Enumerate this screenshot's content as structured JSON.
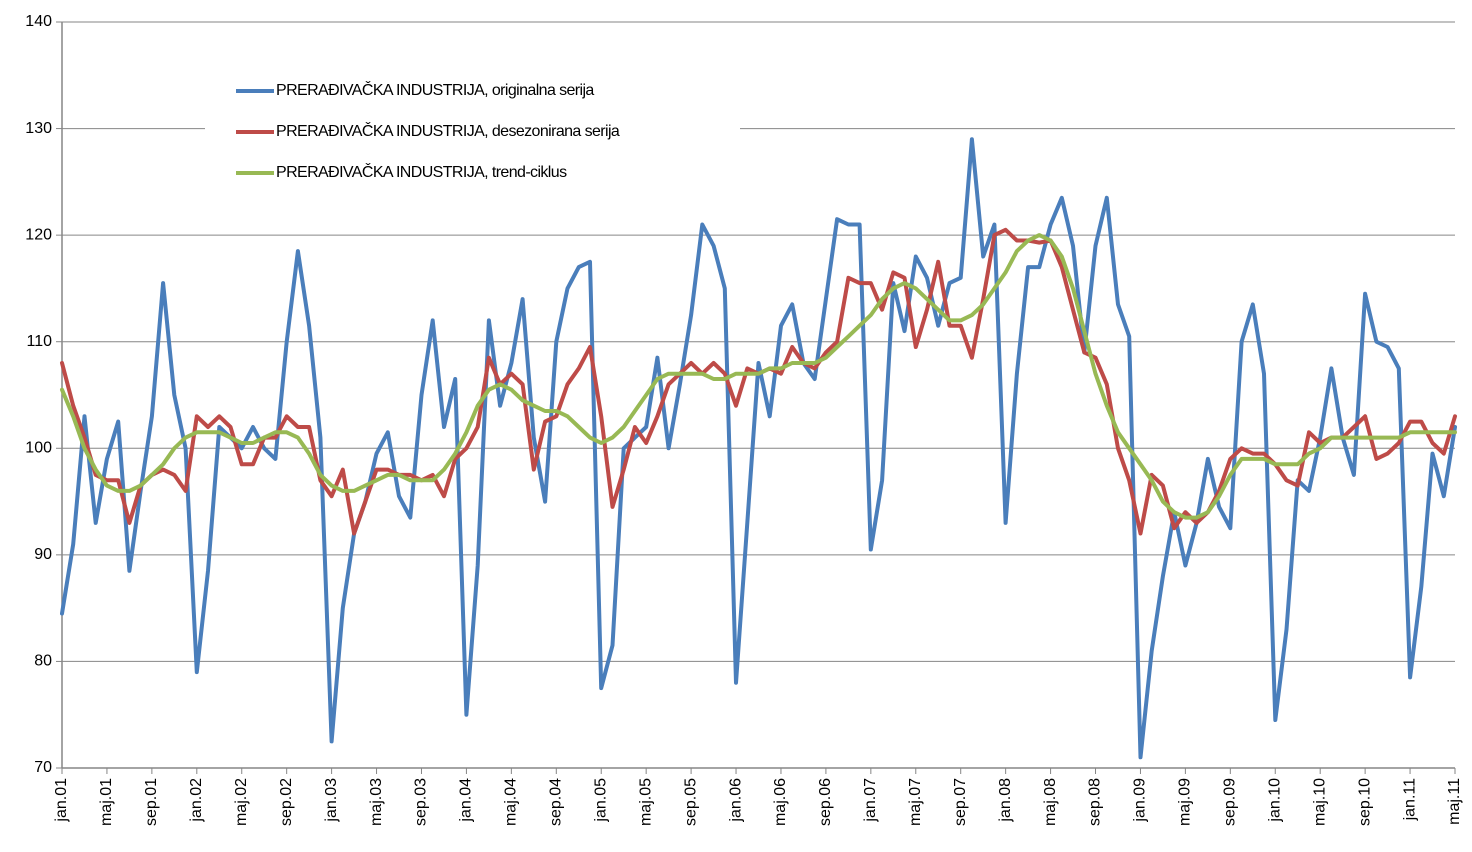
{
  "chart_data": {
    "type": "line",
    "categories": [
      "jan.01",
      null,
      null,
      null,
      "maj.01",
      null,
      null,
      null,
      "sep.01",
      null,
      null,
      null,
      "jan.02",
      null,
      null,
      null,
      "maj.02",
      null,
      null,
      null,
      "sep.02",
      null,
      null,
      null,
      "jan.03",
      null,
      null,
      null,
      "maj.03",
      null,
      null,
      null,
      "sep.03",
      null,
      null,
      null,
      "jan.04",
      null,
      null,
      null,
      "maj.04",
      null,
      null,
      null,
      "sep.04",
      null,
      null,
      null,
      "jan.05",
      null,
      null,
      null,
      "maj.05",
      null,
      null,
      null,
      "sep.05",
      null,
      null,
      null,
      "jan.06",
      null,
      null,
      null,
      "maj.06",
      null,
      null,
      null,
      "sep.06",
      null,
      null,
      null,
      "jan.07",
      null,
      null,
      null,
      "maj.07",
      null,
      null,
      null,
      "sep.07",
      null,
      null,
      null,
      "jan.08",
      null,
      null,
      null,
      "maj.08",
      null,
      null,
      null,
      "sep.08",
      null,
      null,
      null,
      "jan.09",
      null,
      null,
      null,
      "maj.09",
      null,
      null,
      null,
      "sep.09",
      null,
      null,
      null,
      "jan.10",
      null,
      null,
      null,
      "maj.10",
      null,
      null,
      null,
      "sep.10",
      null,
      null,
      null,
      "jan.11",
      null,
      null,
      null,
      "maj.11"
    ],
    "series": [
      {
        "name": "PRERAĐIVAČKA INDUSTRIJA, originalna serija",
        "color": "#4a7ebb",
        "values": [
          84.5,
          91,
          103,
          93,
          99,
          102.5,
          88.5,
          96,
          103,
          115.5,
          105,
          100,
          79,
          88.5,
          102,
          101,
          100,
          102,
          100,
          99,
          110,
          118.5,
          111.5,
          101,
          72.5,
          85,
          92,
          95,
          99.5,
          101.5,
          95.5,
          93.5,
          105,
          112,
          102,
          106.5,
          75,
          89,
          112,
          104,
          108,
          114,
          101,
          95,
          110,
          115,
          117,
          117.5,
          77.5,
          81.5,
          100,
          101,
          102,
          108.5,
          100,
          106,
          112.5,
          121,
          119,
          115,
          78,
          93,
          108,
          103,
          111.5,
          113.5,
          108,
          106.5,
          114,
          121.5,
          121,
          121,
          90.5,
          97,
          115.5,
          111,
          118,
          116,
          111.5,
          115.5,
          116,
          129,
          118,
          121,
          93,
          107,
          117,
          117,
          121,
          123.5,
          119,
          109,
          119,
          123.5,
          113.5,
          110.5,
          71,
          81,
          88,
          94,
          89,
          93,
          99,
          94.5,
          92.5,
          110,
          113.5,
          107,
          74.5,
          83,
          97,
          96,
          101,
          107.5,
          101,
          97.5,
          114.5,
          110,
          109.5,
          107.5,
          78.5,
          87,
          99.5,
          95.5,
          102
        ]
      },
      {
        "name": "PRERAĐIVAČKA INDUSTRIJA, desezonirana serija",
        "color": "#be4b48",
        "values": [
          108,
          104,
          101,
          97.5,
          97,
          97,
          93,
          96.5,
          97.5,
          98,
          97.5,
          96,
          103,
          102,
          103,
          102,
          98.5,
          98.5,
          101,
          101,
          103,
          102,
          102,
          97,
          95.5,
          98,
          92,
          95,
          98,
          98,
          97.5,
          97.5,
          97,
          97.5,
          95.5,
          99,
          100,
          102,
          108.5,
          106,
          107,
          106,
          98,
          102.5,
          103,
          106,
          107.5,
          109.5,
          103,
          94.5,
          98,
          102,
          100.5,
          103,
          106,
          107,
          108,
          107,
          108,
          107,
          104,
          107.5,
          107,
          107.5,
          107,
          109.5,
          108,
          107.5,
          109,
          110,
          116,
          115.5,
          115.5,
          113,
          116.5,
          116,
          109.5,
          113,
          117.5,
          111.5,
          111.5,
          108.5,
          114,
          120,
          120.5,
          119.5,
          119.5,
          119.3,
          119.5,
          117,
          113,
          109,
          108.5,
          106,
          100,
          97,
          92,
          97.5,
          96.5,
          92.5,
          94,
          93,
          94,
          96,
          99,
          100,
          99.5,
          99.5,
          98.5,
          97,
          96.5,
          101.5,
          100.5,
          101,
          101,
          102,
          103,
          99,
          99.5,
          100.5,
          102.5,
          102.5,
          100.5,
          99.5,
          103
        ]
      },
      {
        "name": "PRERAĐIVAČKA INDUSTRIJA, trend-ciklus",
        "color": "#98b954",
        "values": [
          105.5,
          103,
          100,
          98,
          96.5,
          96,
          96,
          96.5,
          97.5,
          98.5,
          100,
          101,
          101.5,
          101.5,
          101.5,
          101,
          100.5,
          100.5,
          101,
          101.5,
          101.5,
          101,
          99.5,
          97.5,
          96.5,
          96,
          96,
          96.5,
          97,
          97.5,
          97.5,
          97,
          97,
          97,
          98,
          99.5,
          101.5,
          104,
          105.5,
          106,
          105.5,
          104.5,
          104,
          103.5,
          103.5,
          103,
          102,
          101,
          100.5,
          101,
          102,
          103.5,
          105,
          106.5,
          107,
          107,
          107,
          107,
          106.5,
          106.5,
          107,
          107,
          107,
          107.5,
          107.5,
          108,
          108,
          108,
          108.5,
          109.5,
          110.5,
          111.5,
          112.5,
          114,
          115,
          115.5,
          115,
          114,
          113,
          112,
          112,
          112.5,
          113.5,
          115,
          116.5,
          118.5,
          119.5,
          120,
          119.5,
          118,
          115,
          111,
          107,
          104,
          101.5,
          100,
          98.5,
          97,
          95,
          94,
          93.5,
          93.5,
          94,
          95.5,
          97.5,
          99,
          99,
          99,
          98.5,
          98.5,
          98.5,
          99.5,
          100,
          101,
          101,
          101,
          101,
          101,
          101,
          101,
          101.5,
          101.5,
          101.5,
          101.5,
          101.5
        ]
      }
    ],
    "ylim": [
      70,
      140
    ],
    "yticks": [
      70,
      80,
      90,
      100,
      110,
      120,
      130,
      140
    ],
    "grid": true,
    "legend": "upper-left"
  }
}
